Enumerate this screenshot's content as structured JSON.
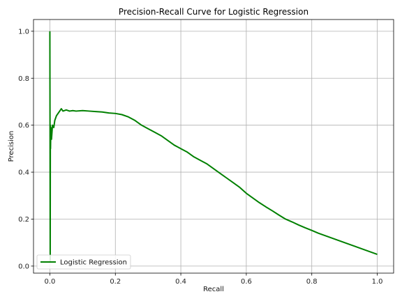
{
  "chart_data": {
    "type": "line",
    "title": "Precision-Recall Curve for Logistic Regression",
    "xlabel": "Recall",
    "ylabel": "Precision",
    "xlim": [
      -0.05,
      1.05
    ],
    "ylim": [
      -0.03,
      1.05
    ],
    "xticks": [
      "0.0",
      "0.2",
      "0.4",
      "0.6",
      "0.8",
      "1.0"
    ],
    "yticks": [
      "0.0",
      "0.2",
      "0.4",
      "0.6",
      "0.8",
      "1.0"
    ],
    "grid": true,
    "legend": "lower-left",
    "series": [
      {
        "name": "Logistic Regression",
        "color": "#008000",
        "points": [
          [
            0.0,
            1.0
          ],
          [
            0.0005,
            0.55
          ],
          [
            0.001,
            0.02
          ],
          [
            0.0015,
            0.6
          ],
          [
            0.002,
            0.5
          ],
          [
            0.003,
            0.59
          ],
          [
            0.005,
            0.54
          ],
          [
            0.008,
            0.6
          ],
          [
            0.012,
            0.59
          ],
          [
            0.015,
            0.62
          ],
          [
            0.02,
            0.64
          ],
          [
            0.025,
            0.65
          ],
          [
            0.03,
            0.66
          ],
          [
            0.035,
            0.67
          ],
          [
            0.04,
            0.66
          ],
          [
            0.05,
            0.665
          ],
          [
            0.06,
            0.66
          ],
          [
            0.07,
            0.662
          ],
          [
            0.08,
            0.66
          ],
          [
            0.1,
            0.662
          ],
          [
            0.12,
            0.66
          ],
          [
            0.14,
            0.658
          ],
          [
            0.16,
            0.656
          ],
          [
            0.18,
            0.652
          ],
          [
            0.2,
            0.65
          ],
          [
            0.22,
            0.645
          ],
          [
            0.24,
            0.635
          ],
          [
            0.26,
            0.62
          ],
          [
            0.28,
            0.6
          ],
          [
            0.3,
            0.585
          ],
          [
            0.32,
            0.57
          ],
          [
            0.34,
            0.555
          ],
          [
            0.36,
            0.535
          ],
          [
            0.38,
            0.515
          ],
          [
            0.4,
            0.5
          ],
          [
            0.42,
            0.485
          ],
          [
            0.44,
            0.465
          ],
          [
            0.46,
            0.45
          ],
          [
            0.48,
            0.435
          ],
          [
            0.5,
            0.415
          ],
          [
            0.52,
            0.395
          ],
          [
            0.54,
            0.375
          ],
          [
            0.56,
            0.355
          ],
          [
            0.58,
            0.335
          ],
          [
            0.6,
            0.31
          ],
          [
            0.62,
            0.29
          ],
          [
            0.64,
            0.27
          ],
          [
            0.66,
            0.252
          ],
          [
            0.68,
            0.235
          ],
          [
            0.7,
            0.217
          ],
          [
            0.72,
            0.2
          ],
          [
            0.74,
            0.188
          ],
          [
            0.76,
            0.175
          ],
          [
            0.78,
            0.163
          ],
          [
            0.8,
            0.152
          ],
          [
            0.82,
            0.14
          ],
          [
            0.84,
            0.13
          ],
          [
            0.86,
            0.12
          ],
          [
            0.88,
            0.11
          ],
          [
            0.9,
            0.1
          ],
          [
            0.92,
            0.09
          ],
          [
            0.94,
            0.08
          ],
          [
            0.96,
            0.07
          ],
          [
            0.98,
            0.06
          ],
          [
            1.0,
            0.05
          ]
        ]
      }
    ]
  }
}
